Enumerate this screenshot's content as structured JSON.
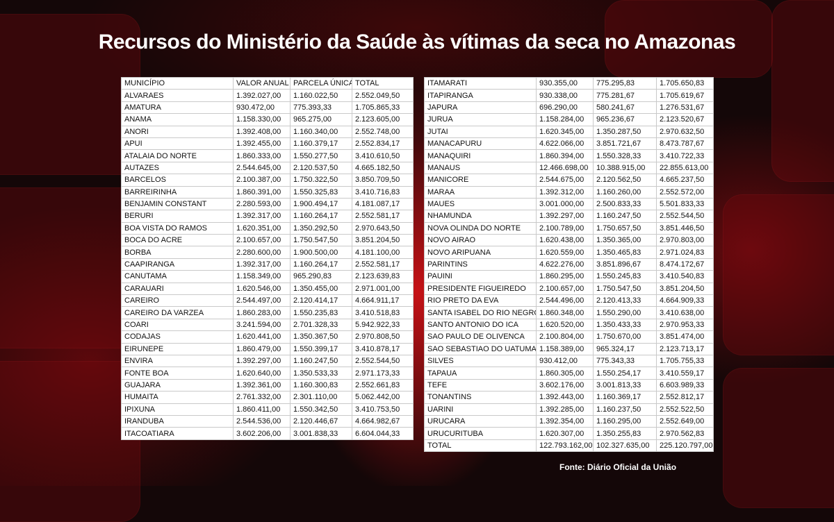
{
  "title": "Recursos do Ministério da Saúde às vítimas da seca no Amazonas",
  "left_table": {
    "headers": [
      "MUNICÍPIO",
      "VALOR ANUAL",
      "PARCELA ÚNICA",
      "TOTAL"
    ],
    "rows": [
      [
        "ALVARAES",
        "1.392.027,00",
        "1.160.022,50",
        "2.552.049,50"
      ],
      [
        "AMATURA",
        "930.472,00",
        "775.393,33",
        "1.705.865,33"
      ],
      [
        "ANAMA",
        "1.158.330,00",
        "965.275,00",
        "2.123.605,00"
      ],
      [
        "ANORI",
        "1.392.408,00",
        "1.160.340,00",
        "2.552.748,00"
      ],
      [
        "APUI",
        "1.392.455,00",
        "1.160.379,17",
        "2.552.834,17"
      ],
      [
        "ATALAIA DO NORTE",
        "1.860.333,00",
        "1.550.277,50",
        "3.410.610,50"
      ],
      [
        "AUTAZES",
        "2.544.645,00",
        "2.120.537,50",
        "4.665.182,50"
      ],
      [
        "BARCELOS",
        "2.100.387,00",
        "1.750.322,50",
        "3.850.709,50"
      ],
      [
        "BARREIRINHA",
        "1.860.391,00",
        "1.550.325,83",
        "3.410.716,83"
      ],
      [
        "BENJAMIN CONSTANT",
        "2.280.593,00",
        "1.900.494,17",
        "4.181.087,17"
      ],
      [
        "BERURI",
        "1.392.317,00",
        "1.160.264,17",
        "2.552.581,17"
      ],
      [
        "BOA VISTA DO RAMOS",
        "1.620.351,00",
        "1.350.292,50",
        "2.970.643,50"
      ],
      [
        "BOCA DO ACRE",
        "2.100.657,00",
        "1.750.547,50",
        "3.851.204,50"
      ],
      [
        "BORBA",
        "2.280.600,00",
        "1.900.500,00",
        "4.181.100,00"
      ],
      [
        "CAAPIRANGA",
        "1.392.317,00",
        "1.160.264,17",
        "2.552.581,17"
      ],
      [
        "CANUTAMA",
        "1.158.349,00",
        "965.290,83",
        "2.123.639,83"
      ],
      [
        "CARAUARI",
        "1.620.546,00",
        "1.350.455,00",
        "2.971.001,00"
      ],
      [
        "CAREIRO",
        "2.544.497,00",
        "2.120.414,17",
        "4.664.911,17"
      ],
      [
        "CAREIRO DA VARZEA",
        "1.860.283,00",
        "1.550.235,83",
        "3.410.518,83"
      ],
      [
        "COARI",
        "3.241.594,00",
        "2.701.328,33",
        "5.942.922,33"
      ],
      [
        "CODAJAS",
        "1.620.441,00",
        "1.350.367,50",
        "2.970.808,50"
      ],
      [
        "EIRUNEPE",
        "1.860.479,00",
        "1.550.399,17",
        "3.410.878,17"
      ],
      [
        "ENVIRA",
        "1.392.297,00",
        "1.160.247,50",
        "2.552.544,50"
      ],
      [
        "FONTE BOA",
        "1.620.640,00",
        "1.350.533,33",
        "2.971.173,33"
      ],
      [
        "GUAJARA",
        "1.392.361,00",
        "1.160.300,83",
        "2.552.661,83"
      ],
      [
        "HUMAITA",
        "2.761.332,00",
        "2.301.110,00",
        "5.062.442,00"
      ],
      [
        "IPIXUNA",
        "1.860.411,00",
        "1.550.342,50",
        "3.410.753,50"
      ],
      [
        "IRANDUBA",
        "2.544.536,00",
        "2.120.446,67",
        "4.664.982,67"
      ],
      [
        "ITACOATIARA",
        "3.602.206,00",
        "3.001.838,33",
        "6.604.044,33"
      ]
    ]
  },
  "right_table": {
    "rows": [
      [
        "ITAMARATI",
        "930.355,00",
        "775.295,83",
        "1.705.650,83"
      ],
      [
        "ITAPIRANGA",
        "930.338,00",
        "775.281,67",
        "1.705.619,67"
      ],
      [
        "JAPURA",
        "696.290,00",
        "580.241,67",
        "1.276.531,67"
      ],
      [
        "JURUA",
        "1.158.284,00",
        "965.236,67",
        "2.123.520,67"
      ],
      [
        "JUTAI",
        "1.620.345,00",
        "1.350.287,50",
        "2.970.632,50"
      ],
      [
        "MANACAPURU",
        "4.622.066,00",
        "3.851.721,67",
        "8.473.787,67"
      ],
      [
        "MANAQUIRI",
        "1.860.394,00",
        "1.550.328,33",
        "3.410.722,33"
      ],
      [
        "MANAUS",
        "12.466.698,00",
        "10.388.915,00",
        "22.855.613,00"
      ],
      [
        "MANICORE",
        "2.544.675,00",
        "2.120.562,50",
        "4.665.237,50"
      ],
      [
        "MARAA",
        "1.392.312,00",
        "1.160.260,00",
        "2.552.572,00"
      ],
      [
        "MAUES",
        "3.001.000,00",
        "2.500.833,33",
        "5.501.833,33"
      ],
      [
        "NHAMUNDA",
        "1.392.297,00",
        "1.160.247,50",
        "2.552.544,50"
      ],
      [
        "NOVA OLINDA DO NORTE",
        "2.100.789,00",
        "1.750.657,50",
        "3.851.446,50"
      ],
      [
        "NOVO AIRAO",
        "1.620.438,00",
        "1.350.365,00",
        "2.970.803,00"
      ],
      [
        "NOVO ARIPUANA",
        "1.620.559,00",
        "1.350.465,83",
        "2.971.024,83"
      ],
      [
        "PARINTINS",
        "4.622.276,00",
        "3.851.896,67",
        "8.474.172,67"
      ],
      [
        "PAUINI",
        "1.860.295,00",
        "1.550.245,83",
        "3.410.540,83"
      ],
      [
        "PRESIDENTE FIGUEIREDO",
        "2.100.657,00",
        "1.750.547,50",
        "3.851.204,50"
      ],
      [
        "RIO PRETO DA EVA",
        "2.544.496,00",
        "2.120.413,33",
        "4.664.909,33"
      ],
      [
        "SANTA ISABEL DO RIO NEGRO",
        "1.860.348,00",
        "1.550.290,00",
        "3.410.638,00"
      ],
      [
        "SANTO ANTONIO DO ICA",
        "1.620.520,00",
        "1.350.433,33",
        "2.970.953,33"
      ],
      [
        "SAO PAULO DE OLIVENCA",
        "2.100.804,00",
        "1.750.670,00",
        "3.851.474,00"
      ],
      [
        "SAO SEBASTIAO DO UATUMA",
        "1.158.389,00",
        "965.324,17",
        "2.123.713,17"
      ],
      [
        "SILVES",
        "930.412,00",
        "775.343,33",
        "1.705.755,33"
      ],
      [
        "TAPAUA",
        "1.860.305,00",
        "1.550.254,17",
        "3.410.559,17"
      ],
      [
        "TEFE",
        "3.602.176,00",
        "3.001.813,33",
        "6.603.989,33"
      ],
      [
        "TONANTINS",
        "1.392.443,00",
        "1.160.369,17",
        "2.552.812,17"
      ],
      [
        "UARINI",
        "1.392.285,00",
        "1.160.237,50",
        "2.552.522,50"
      ],
      [
        "URUCARA",
        "1.392.354,00",
        "1.160.295,00",
        "2.552.649,00"
      ],
      [
        "URUCURITUBA",
        "1.620.307,00",
        "1.350.255,83",
        "2.970.562,83"
      ],
      [
        "TOTAL",
        "122.793.162,00",
        "102.327.635,00",
        "225.120.797,00"
      ]
    ]
  },
  "source": "Fonte: Diário Oficial da União",
  "colors": {
    "background": "#140708",
    "accent_red": "#e61419",
    "title_text": "#ffffff",
    "table_bg": "#ffffff"
  }
}
